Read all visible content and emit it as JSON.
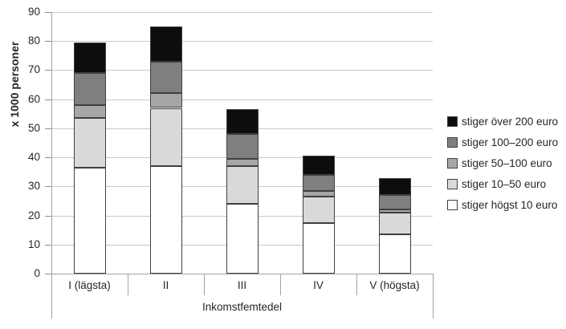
{
  "chart": {
    "y_axis_title": "x 1000 personer",
    "x_axis_title": "Inkomstfemtedel",
    "y_ticks": [
      0,
      10,
      20,
      30,
      40,
      50,
      60,
      70,
      80,
      90
    ]
  },
  "chart_data": {
    "type": "bar",
    "stacked": true,
    "title": "",
    "xlabel": "Inkomstfemtedel",
    "ylabel": "x 1000 personer",
    "ylim": [
      0,
      90
    ],
    "grid": true,
    "legend_position": "right",
    "categories": [
      "I (lägsta)",
      "II",
      "III",
      "IV",
      "V (högsta)"
    ],
    "series": [
      {
        "name": "stiger högst 10 euro",
        "color": "#ffffff",
        "values": [
          36.5,
          37.0,
          24.0,
          17.5,
          13.5
        ]
      },
      {
        "name": "stiger 10–50 euro",
        "color": "#d9d9d9",
        "values": [
          17.0,
          20.0,
          13.0,
          9.0,
          7.5
        ]
      },
      {
        "name": "stiger 50–100 euro",
        "color": "#a6a6a6",
        "values": [
          4.5,
          5.0,
          2.5,
          2.0,
          1.0
        ]
      },
      {
        "name": "stiger 100–200 euro",
        "color": "#7f7f7f",
        "values": [
          11.0,
          11.0,
          8.5,
          5.5,
          5.0
        ]
      },
      {
        "name": "stiger över 200 euro",
        "color": "#0d0d0d",
        "values": [
          10.5,
          12.0,
          8.5,
          6.5,
          6.0
        ]
      }
    ],
    "stack_totals": [
      79.5,
      85.0,
      56.5,
      40.5,
      33.0
    ],
    "legend_top_to_bottom": [
      "stiger över 200 euro",
      "stiger 100–200 euro",
      "stiger 50–100 euro",
      "stiger 10–50 euro",
      "stiger högst 10 euro"
    ],
    "colors": {
      "grid": "#c9c9c9",
      "axis": "#a3a3a3",
      "segment_border": "#404040",
      "text": "#262626"
    }
  }
}
